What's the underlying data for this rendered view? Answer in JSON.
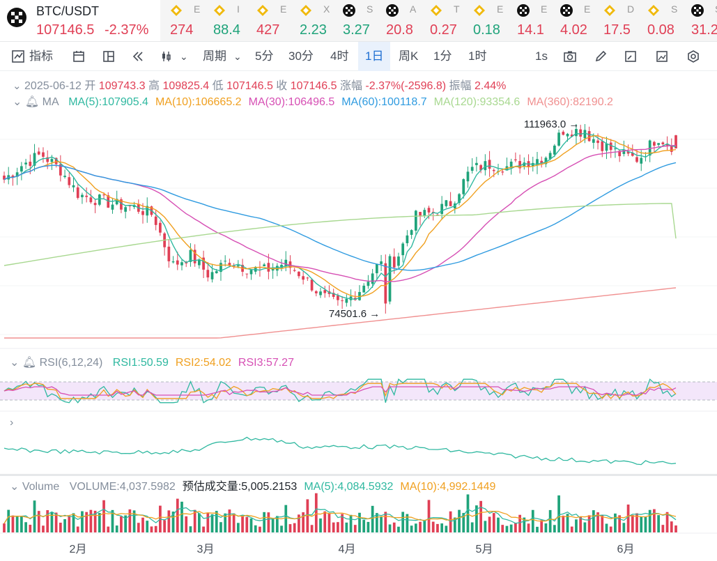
{
  "ticker_main": {
    "pair": "BTC/USDT",
    "price": "107146.5",
    "change": "-2.37%"
  },
  "tickers": [
    {
      "name": "E",
      "value": "274",
      "color": "#e03f55",
      "icon": "binance-icon"
    },
    {
      "name": "I",
      "value": "88.4",
      "color": "#1fa37a",
      "icon": "binance-icon"
    },
    {
      "name": "E",
      "value": "427",
      "color": "#e03f55",
      "icon": "binance-icon"
    },
    {
      "name": "X",
      "value": "2.23",
      "color": "#1fa37a",
      "icon": "binance-icon"
    },
    {
      "name": "S",
      "value": "3.27",
      "color": "#1fa37a",
      "icon": "okx-icon"
    },
    {
      "name": "A",
      "value": "20.8",
      "color": "#e03f55",
      "icon": "okx-icon"
    },
    {
      "name": "T",
      "value": "0.27",
      "color": "#e03f55",
      "icon": "binance-icon"
    },
    {
      "name": "E",
      "value": "0.18",
      "color": "#1fa37a",
      "icon": "binance-icon"
    },
    {
      "name": "E",
      "value": "14.1",
      "color": "#e03f55",
      "icon": "okx-icon"
    },
    {
      "name": "E",
      "value": "4.02",
      "color": "#e03f55",
      "icon": "okx-icon"
    },
    {
      "name": "D",
      "value": "17.5",
      "color": "#e03f55",
      "icon": "binance-icon"
    },
    {
      "name": "S",
      "value": "0.08",
      "color": "#e03f55",
      "icon": "binance-icon"
    },
    {
      "name": "S",
      "value": "31.2",
      "color": "#e03f55",
      "icon": "okx-icon"
    }
  ],
  "toolbar": {
    "indicator": "指标",
    "period": "周期",
    "intervals": [
      "5分",
      "30分",
      "4时",
      "1日",
      "周K",
      "1分",
      "1时"
    ],
    "active_interval": "1日",
    "speed": "1s"
  },
  "ohlc": {
    "date": "2025-06-12",
    "open_label": "开",
    "open": "109743.3",
    "high_label": "高",
    "high": "109825.4",
    "low_label": "低",
    "low": "107146.5",
    "close_label": "收",
    "close": "107146.5",
    "change_label": "涨幅",
    "change": "-2.37%(-2596.8)",
    "amp_label": "振幅",
    "amp": "2.44%"
  },
  "ma_legend": {
    "title": "MA",
    "items": [
      {
        "label": "MA(5):107905.4",
        "color": "#2fb8a0"
      },
      {
        "label": "MA(10):106665.2",
        "color": "#f0a020"
      },
      {
        "label": "MA(30):106496.5",
        "color": "#d64fb4"
      },
      {
        "label": "MA(60):100118.7",
        "color": "#2f9be0"
      },
      {
        "label": "MA(120):93354.6",
        "color": "#a8d890"
      },
      {
        "label": "MA(360):82190.2",
        "color": "#f09090"
      }
    ]
  },
  "rsi_legend": {
    "title": "RSI(6,12,24)",
    "items": [
      {
        "label": "RSI1:50.59",
        "color": "#2fb8a0"
      },
      {
        "label": "RSI2:54.02",
        "color": "#f0a020"
      },
      {
        "label": "RSI3:57.27",
        "color": "#d64fb4"
      }
    ]
  },
  "volume_legend": {
    "title": "Volume",
    "items": [
      {
        "label": "VOLUME:4,037.5982",
        "color": "#848e9c"
      },
      {
        "label": "预估成交量:5,005.2153",
        "color": "#1e2329"
      },
      {
        "label": "MA(5):4,084.5932",
        "color": "#2fb8a0"
      },
      {
        "label": "MA(10):4,992.1449",
        "color": "#f0a020"
      }
    ]
  },
  "colors": {
    "up": "#1fa37a",
    "down": "#e03f55",
    "accent": "#1f6fd2"
  },
  "chart_data": {
    "type": "candlestick",
    "x_ticks": [
      "2月",
      "3月",
      "4月",
      "5月",
      "6月"
    ],
    "price_annotations": [
      {
        "label": "111963.0",
        "value": 111963.0
      },
      {
        "label": "74501.6",
        "value": 74501.6
      }
    ],
    "price_range": [
      74501.6,
      111963.0
    ],
    "series_close_approx": [
      101000,
      104000,
      106000,
      103000,
      98000,
      97000,
      96000,
      95500,
      94000,
      84000,
      86000,
      82000,
      85000,
      83500,
      83000,
      84500,
      82000,
      78000,
      76000,
      79000,
      84000,
      85000,
      93500,
      94500,
      96500,
      103000,
      104000,
      103500,
      104500,
      105500,
      111000,
      110500,
      108000,
      106000,
      105000,
      109500,
      107146.5
    ],
    "ma": {
      "MA5": 107905.4,
      "MA10": 106665.2,
      "MA30": 106496.5,
      "MA60": 100118.7,
      "MA120": 93354.6,
      "MA360": 82190.2
    },
    "rsi": {
      "RSI1": 50.59,
      "RSI2": 54.02,
      "RSI3": 57.27
    },
    "volume": {
      "current": 4037.5982,
      "estimated": 5005.2153,
      "MA5": 4084.5932,
      "MA10": 4992.1449
    }
  }
}
